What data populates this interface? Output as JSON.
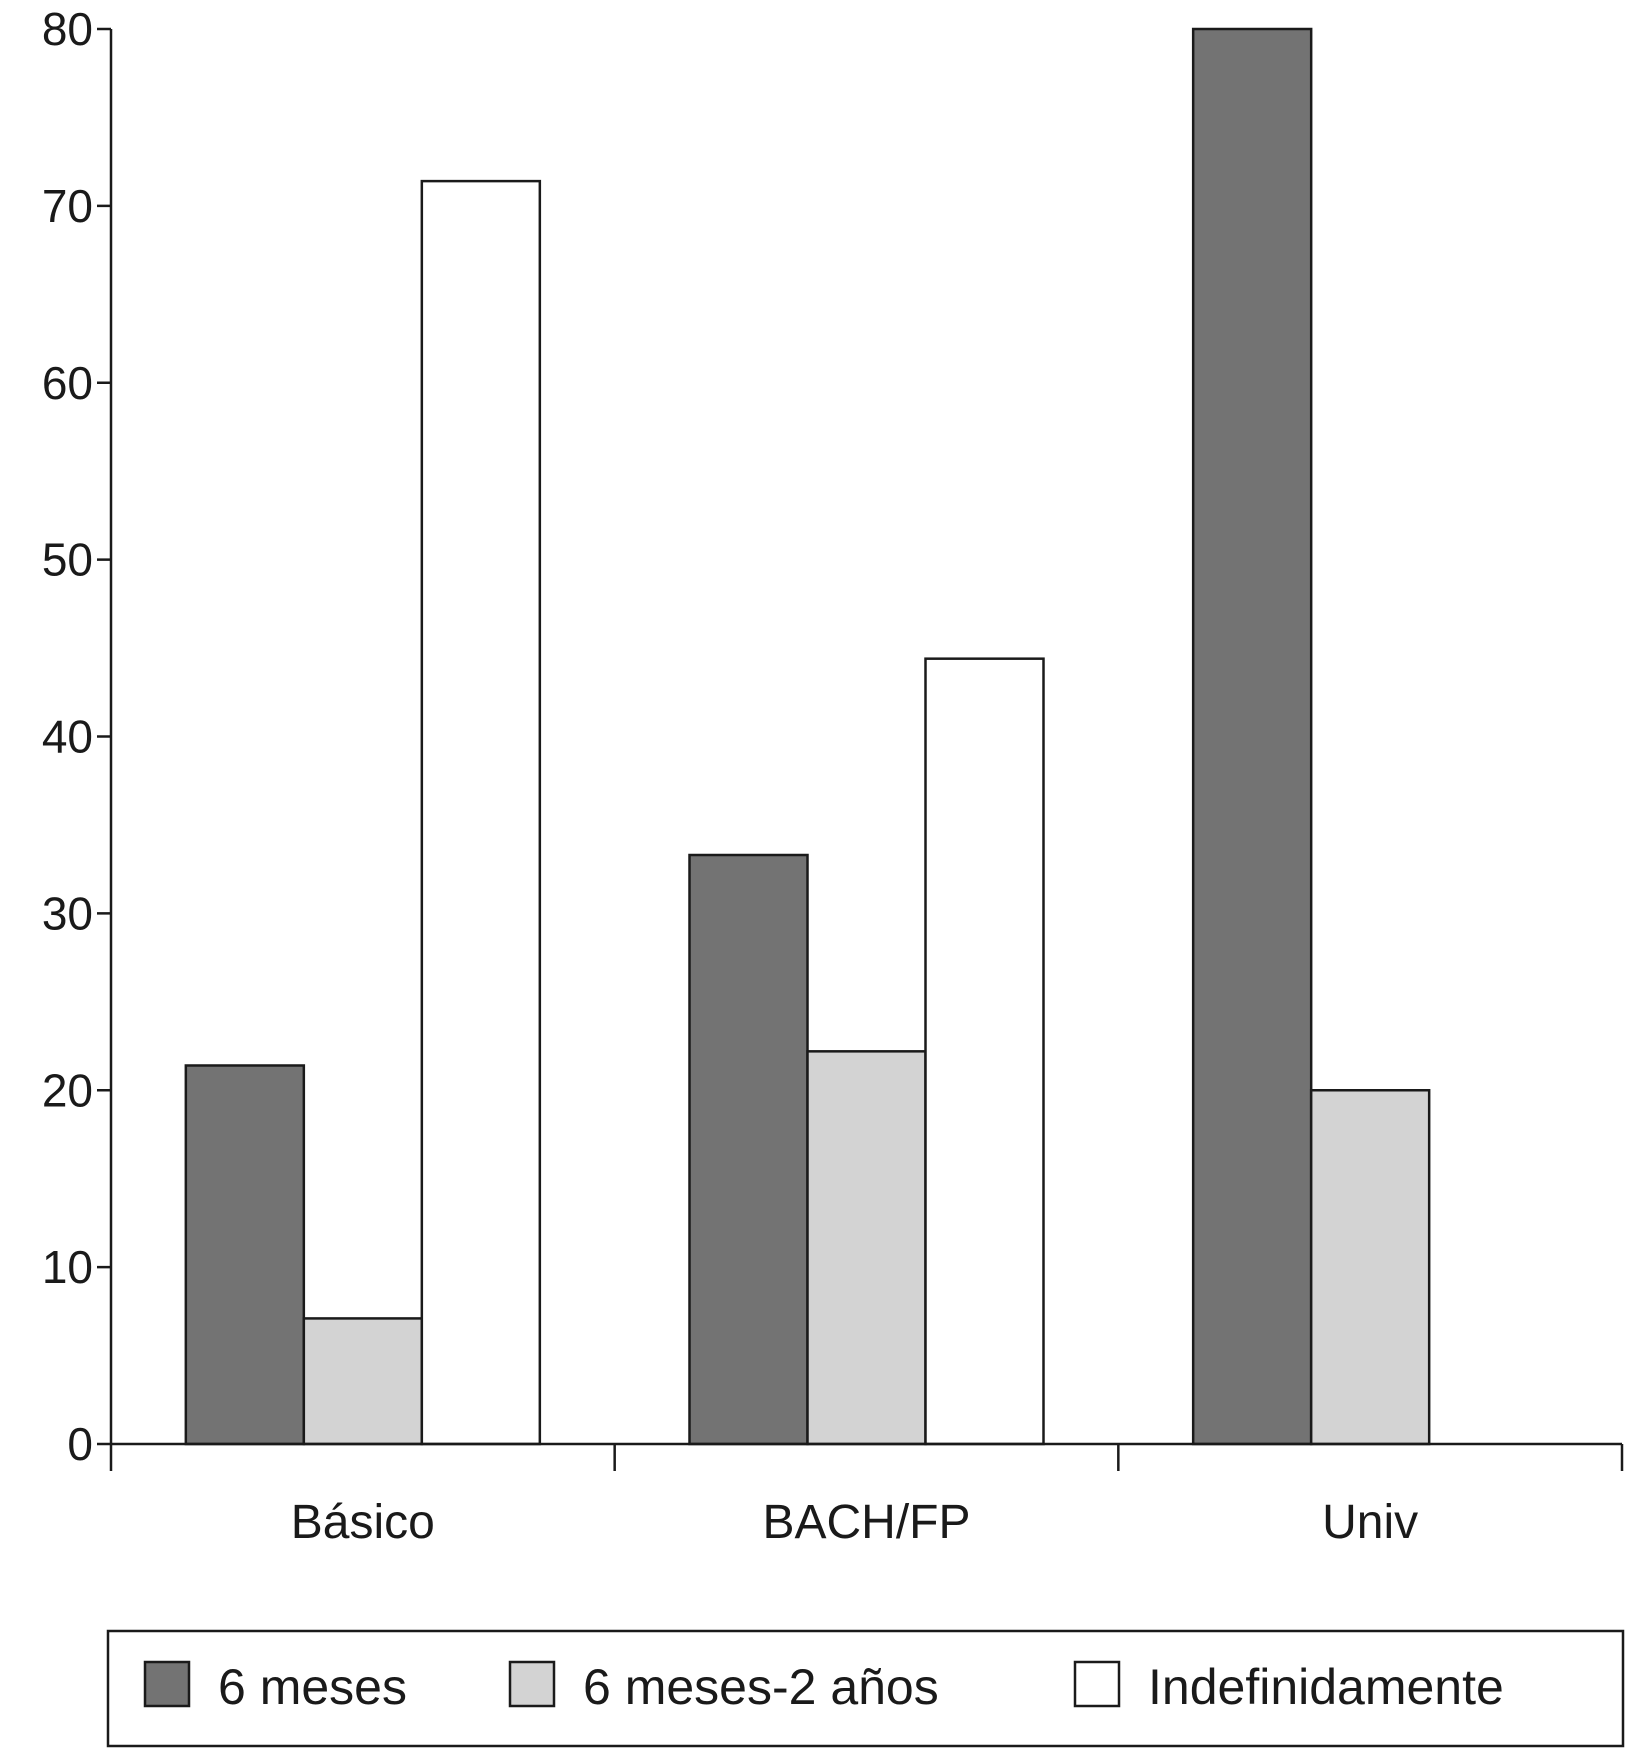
{
  "chart_data": {
    "type": "bar",
    "categories": [
      "Básico",
      "BACH/FP",
      "Univ"
    ],
    "series": [
      {
        "name": "6 meses",
        "values": [
          21.4,
          33.3,
          80.0
        ],
        "color": "#737373"
      },
      {
        "name": "6 meses-2 años",
        "values": [
          7.1,
          22.2,
          20.0
        ],
        "color": "#d3d3d3"
      },
      {
        "name": "Indefinidamente",
        "values": [
          71.4,
          44.4,
          0
        ],
        "color": "#ffffff"
      }
    ],
    "ylim": [
      0,
      80
    ],
    "yticks": [
      0,
      10,
      20,
      30,
      40,
      50,
      60,
      70,
      80
    ],
    "legend_position": "bottom",
    "grid": false
  }
}
